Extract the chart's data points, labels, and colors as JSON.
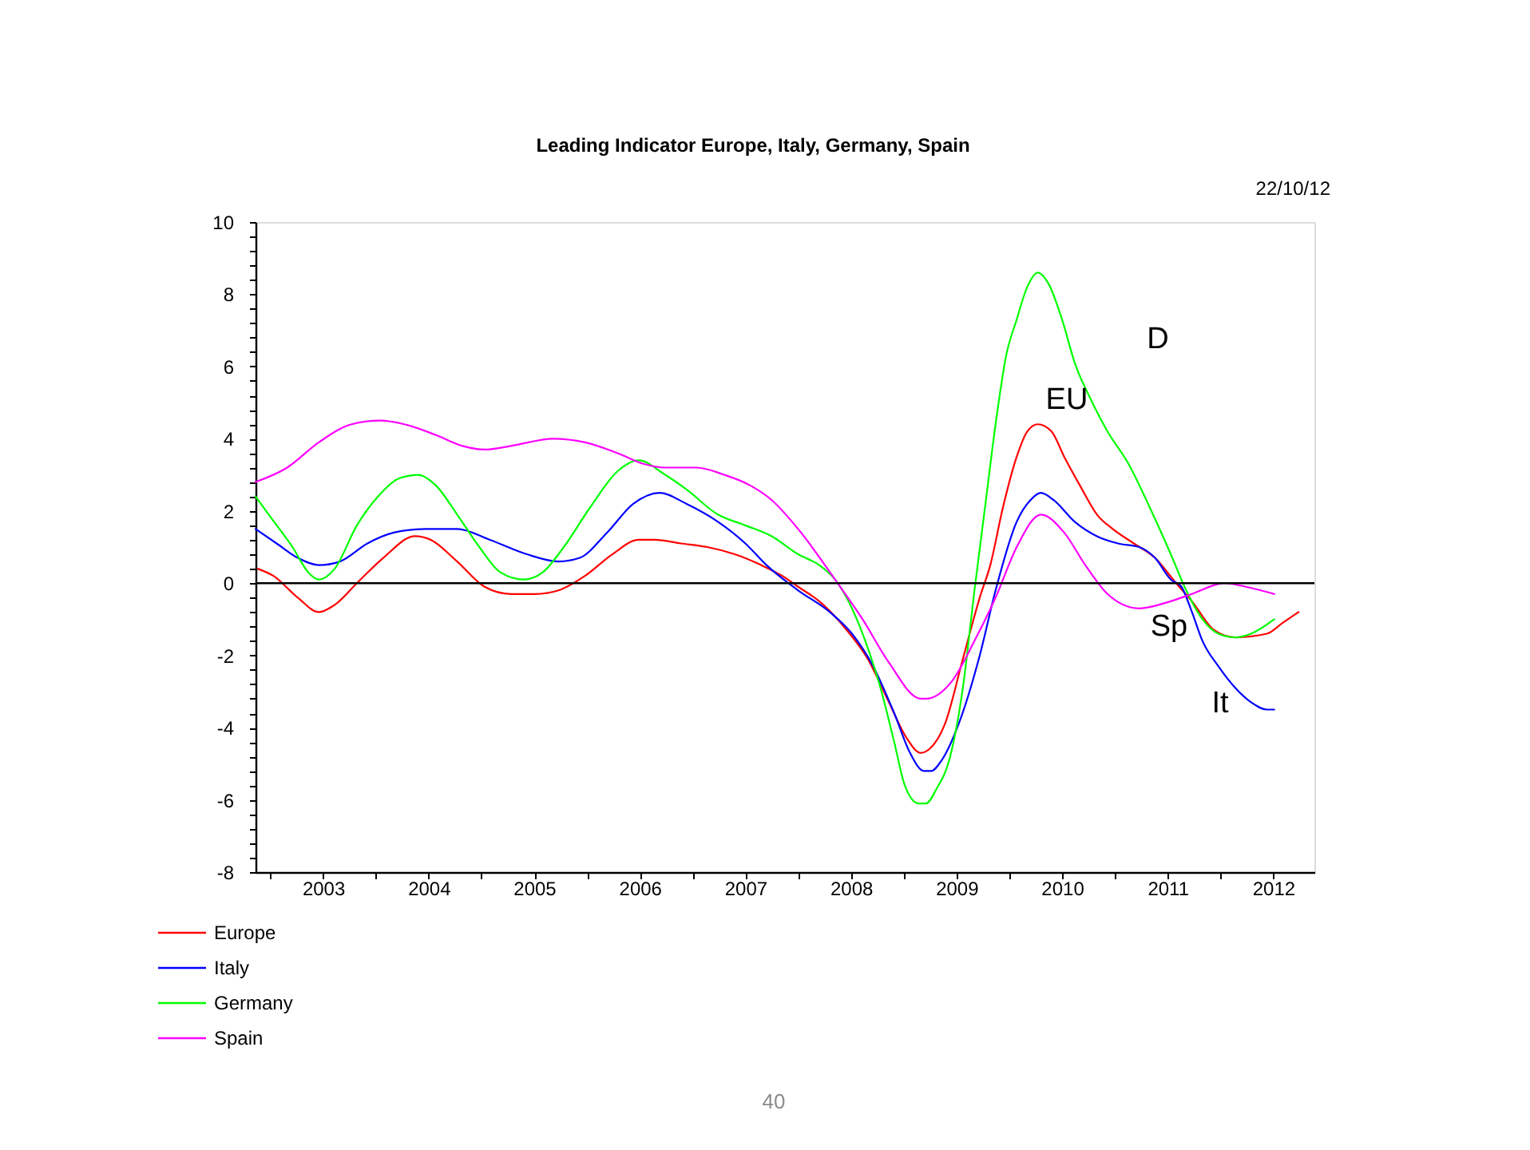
{
  "chart_data": {
    "type": "line",
    "title": "Leading Indicator Europe, Italy, Germany, Spain",
    "subtitle": "22/10/12",
    "annotations": [
      "D",
      "EU",
      "Sp",
      "It",
      "40"
    ],
    "xlim": [
      2002.86,
      2012.89
    ],
    "xticks": [
      {
        "value": 2003,
        "label": null
      },
      {
        "value": 2003.5,
        "label": "2003"
      },
      {
        "value": 2004,
        "label": null
      },
      {
        "value": 2004.5,
        "label": "2004"
      },
      {
        "value": 2005,
        "label": null
      },
      {
        "value": 2005.5,
        "label": "2005"
      },
      {
        "value": 2006,
        "label": null
      },
      {
        "value": 2006.5,
        "label": "2006"
      },
      {
        "value": 2007,
        "label": null
      },
      {
        "value": 2007.5,
        "label": "2007"
      },
      {
        "value": 2008,
        "label": null
      },
      {
        "value": 2008.5,
        "label": "2008"
      },
      {
        "value": 2009,
        "label": null
      },
      {
        "value": 2009.5,
        "label": "2009"
      },
      {
        "value": 2010,
        "label": null
      },
      {
        "value": 2010.5,
        "label": "2010"
      },
      {
        "value": 2011,
        "label": null
      },
      {
        "value": 2011.5,
        "label": "2011"
      },
      {
        "value": 2012,
        "label": null
      },
      {
        "value": 2012.5,
        "label": "2012"
      }
    ],
    "ylim": [
      -8,
      10
    ],
    "yticks": [
      -8,
      {
        "value": -7.6,
        "label": null
      },
      {
        "value": -7.2,
        "label": null
      },
      {
        "value": -6.8,
        "label": null
      },
      {
        "value": -6.4,
        "label": null
      },
      -6,
      {
        "value": -5.6,
        "label": null
      },
      {
        "value": -5.2,
        "label": null
      },
      {
        "value": -4.8,
        "label": null
      },
      {
        "value": -4.4,
        "label": null
      },
      -4,
      {
        "value": -3.6,
        "label": null
      },
      {
        "value": -3.2,
        "label": null
      },
      {
        "value": -2.8,
        "label": null
      },
      {
        "value": -2.4,
        "label": null
      },
      -2,
      {
        "value": -1.6,
        "label": null
      },
      {
        "value": -1.2,
        "label": null
      },
      {
        "value": -0.8,
        "label": null
      },
      {
        "value": -0.4,
        "label": null
      },
      0,
      {
        "value": 0.4,
        "label": null
      },
      {
        "value": 0.8,
        "label": null
      },
      {
        "value": 1.2,
        "label": null
      },
      {
        "value": 1.6,
        "label": null
      },
      2,
      {
        "value": 2.4,
        "label": null
      },
      {
        "value": 2.8,
        "label": null
      },
      {
        "value": 3.2,
        "label": null
      },
      {
        "value": 3.6,
        "label": null
      },
      4,
      {
        "value": 4.4,
        "label": null
      },
      {
        "value": 4.8,
        "label": null
      },
      {
        "value": 5.2,
        "label": null
      },
      {
        "value": 5.6,
        "label": null
      },
      6,
      {
        "value": 6.4,
        "label": null
      },
      {
        "value": 6.8,
        "label": null
      },
      {
        "value": 7.2,
        "label": null
      },
      {
        "value": 7.6,
        "label": null
      },
      8,
      {
        "value": 8.4,
        "label": null
      },
      {
        "value": 8.8,
        "label": null
      },
      {
        "value": 9.2,
        "label": null
      },
      {
        "value": 9.6,
        "label": null
      },
      10
    ],
    "legend": "bottom left",
    "ref_lines": [
      {
        "axis": "y",
        "value": 0,
        "color": "#000000"
      }
    ],
    "series": [
      {
        "name": "Europe",
        "color": "#ff0000",
        "x": [
          2002.88,
          2003.03,
          2003.26,
          2003.46,
          2003.61,
          2003.82,
          2004.07,
          2004.37,
          2004.52,
          2004.77,
          2005.03,
          2005.28,
          2005.51,
          2005.73,
          2005.98,
          2006.24,
          2006.49,
          2006.64,
          2006.89,
          2007.14,
          2007.4,
          2007.65,
          2007.85,
          2008.0,
          2008.2,
          2008.46,
          2008.66,
          2008.86,
          2009.03,
          2009.16,
          2009.24,
          2009.39,
          2009.56,
          2009.72,
          2009.82,
          2009.94,
          2010.07,
          2010.17,
          2010.27,
          2010.4,
          2010.52,
          2010.67,
          2010.83,
          2010.98,
          2011.18,
          2011.38,
          2011.58,
          2011.73,
          2011.94,
          2012.14,
          2012.44,
          2012.59,
          2012.74
        ],
        "values": [
          0.4,
          0.2,
          -0.4,
          -0.8,
          -0.6,
          0.0,
          0.7,
          1.3,
          1.2,
          0.6,
          -0.1,
          -0.3,
          -0.3,
          -0.2,
          0.2,
          0.8,
          1.2,
          1.2,
          1.1,
          1.0,
          0.8,
          0.5,
          0.2,
          -0.1,
          -0.5,
          -1.3,
          -2.1,
          -3.3,
          -4.3,
          -4.7,
          -4.6,
          -3.9,
          -2.1,
          -0.4,
          0.5,
          2.1,
          3.5,
          4.2,
          4.4,
          4.2,
          3.5,
          2.7,
          1.9,
          1.5,
          1.1,
          0.7,
          0.0,
          -0.5,
          -1.3,
          -1.5,
          -1.4,
          -1.1,
          -0.8
        ]
      },
      {
        "name": "Italy",
        "color": "#0000ff",
        "x": [
          2002.86,
          2003.06,
          2003.26,
          2003.46,
          2003.66,
          2003.92,
          2004.17,
          2004.47,
          2004.77,
          2005.08,
          2005.43,
          2005.73,
          2005.93,
          2006.19,
          2006.44,
          2006.69,
          2006.94,
          2007.24,
          2007.5,
          2007.7,
          2008.0,
          2008.3,
          2008.51,
          2008.71,
          2008.91,
          2009.06,
          2009.19,
          2009.26,
          2009.36,
          2009.52,
          2009.72,
          2009.87,
          2010.07,
          2010.2,
          2010.3,
          2010.42,
          2010.62,
          2010.83,
          2011.03,
          2011.23,
          2011.38,
          2011.53,
          2011.63,
          2011.73,
          2011.83,
          2011.98,
          2012.14,
          2012.29,
          2012.44,
          2012.51
        ],
        "values": [
          1.5,
          1.1,
          0.7,
          0.5,
          0.6,
          1.1,
          1.4,
          1.5,
          1.5,
          1.2,
          0.8,
          0.6,
          0.7,
          1.4,
          2.2,
          2.5,
          2.2,
          1.7,
          1.1,
          0.5,
          -0.2,
          -0.8,
          -1.4,
          -2.3,
          -3.6,
          -4.7,
          -5.2,
          -5.2,
          -4.9,
          -3.9,
          -2.0,
          -0.2,
          1.7,
          2.3,
          2.5,
          2.3,
          1.7,
          1.3,
          1.1,
          1.0,
          0.7,
          0.1,
          -0.1,
          -0.8,
          -1.6,
          -2.3,
          -2.9,
          -3.3,
          -3.5,
          -3.5
        ]
      },
      {
        "name": "Germany",
        "color": "#00ff00",
        "x": [
          2002.86,
          2003.01,
          2003.21,
          2003.36,
          2003.46,
          2003.61,
          2003.82,
          2004.02,
          2004.22,
          2004.4,
          2004.57,
          2004.77,
          2004.98,
          2005.18,
          2005.4,
          2005.58,
          2005.78,
          2006.03,
          2006.29,
          2006.49,
          2006.74,
          2006.94,
          2007.24,
          2007.5,
          2007.75,
          2008.0,
          2008.2,
          2008.35,
          2008.51,
          2008.66,
          2008.78,
          2008.91,
          2009.01,
          2009.14,
          2009.21,
          2009.31,
          2009.44,
          2009.56,
          2009.67,
          2009.77,
          2009.87,
          2009.97,
          2010.07,
          2010.17,
          2010.27,
          2010.37,
          2010.5,
          2010.62,
          2010.77,
          2010.93,
          2011.13,
          2011.33,
          2011.53,
          2011.66,
          2011.83,
          2011.98,
          2012.14,
          2012.29,
          2012.51
        ],
        "values": [
          2.4,
          1.8,
          1.0,
          0.3,
          0.1,
          0.4,
          1.6,
          2.4,
          2.9,
          3.0,
          2.7,
          1.9,
          1.0,
          0.3,
          0.1,
          0.3,
          1.0,
          2.1,
          3.1,
          3.4,
          3.0,
          2.6,
          1.9,
          1.6,
          1.3,
          0.8,
          0.5,
          0.1,
          -0.7,
          -1.8,
          -2.9,
          -4.4,
          -5.6,
          -6.1,
          -6.1,
          -5.7,
          -4.8,
          -2.9,
          -0.2,
          2.1,
          4.4,
          6.3,
          7.3,
          8.2,
          8.6,
          8.3,
          7.3,
          6.1,
          5.1,
          4.2,
          3.3,
          2.1,
          0.8,
          -0.1,
          -1.0,
          -1.4,
          -1.5,
          -1.4,
          -1.0
        ]
      },
      {
        "name": "Spain",
        "color": "#ff00ff",
        "x": [
          2002.86,
          2003.16,
          2003.46,
          2003.77,
          2004.04,
          2004.27,
          2004.57,
          2004.82,
          2005.03,
          2005.28,
          2005.68,
          2005.98,
          2006.29,
          2006.54,
          2006.74,
          2007.04,
          2007.3,
          2007.55,
          2007.75,
          2008.0,
          2008.35,
          2008.61,
          2008.86,
          2009.16,
          2009.21,
          2009.46,
          2009.67,
          2009.87,
          2010.07,
          2010.3,
          2010.52,
          2010.72,
          2010.93,
          2011.23,
          2011.53,
          2011.73,
          2012.04,
          2012.24,
          2012.51
        ],
        "values": [
          2.8,
          3.2,
          3.9,
          4.4,
          4.5,
          4.4,
          4.1,
          3.8,
          3.7,
          3.8,
          4.0,
          3.9,
          3.6,
          3.3,
          3.2,
          3.2,
          3.0,
          2.7,
          2.3,
          1.5,
          0.1,
          -1.0,
          -2.2,
          -3.2,
          -3.2,
          -2.7,
          -1.6,
          -0.4,
          1.0,
          1.9,
          1.4,
          0.5,
          -0.3,
          -0.7,
          -0.5,
          -0.3,
          0.0,
          -0.1,
          -0.3
        ]
      }
    ]
  }
}
